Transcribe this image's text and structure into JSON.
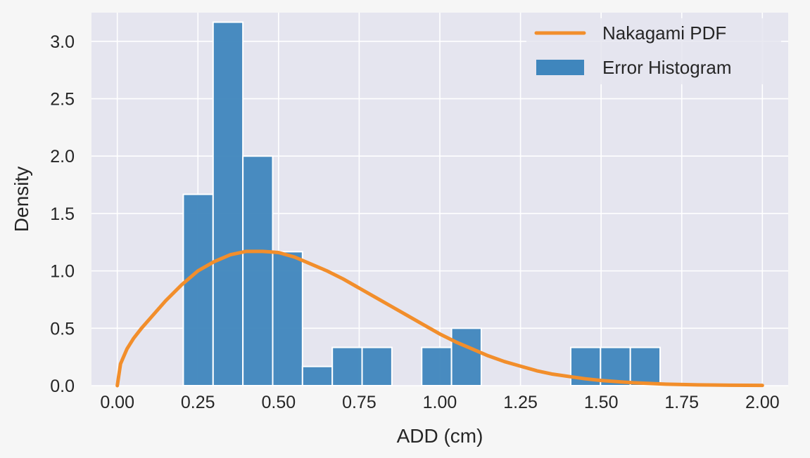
{
  "chart_data": {
    "type": "bar",
    "title": "",
    "xlabel": "ADD (cm)",
    "ylabel": "Density",
    "xlim": [
      -0.08,
      2.08
    ],
    "ylim": [
      0,
      3.25
    ],
    "grid": true,
    "x_ticks": [
      "0.00",
      "0.25",
      "0.50",
      "0.75",
      "1.00",
      "1.25",
      "1.50",
      "1.75",
      "2.00"
    ],
    "y_ticks": [
      "0.0",
      "0.5",
      "1.0",
      "1.5",
      "2.0",
      "2.5",
      "3.0"
    ],
    "legend_position": "top-right",
    "series": [
      {
        "name": "Error Histogram",
        "kind": "histogram",
        "color": "#3f86bd",
        "bin_width": 0.0924,
        "bins": [
          {
            "x0": 0.2046,
            "x1": 0.297,
            "density": 1.667
          },
          {
            "x0": 0.297,
            "x1": 0.3894,
            "density": 3.167
          },
          {
            "x0": 0.3894,
            "x1": 0.4818,
            "density": 2.0
          },
          {
            "x0": 0.4818,
            "x1": 0.5742,
            "density": 1.167
          },
          {
            "x0": 0.5742,
            "x1": 0.6666,
            "density": 0.167
          },
          {
            "x0": 0.6666,
            "x1": 0.759,
            "density": 0.333
          },
          {
            "x0": 0.759,
            "x1": 0.8514,
            "density": 0.333
          },
          {
            "x0": 0.8514,
            "x1": 0.9438,
            "density": 0.0
          },
          {
            "x0": 0.9438,
            "x1": 1.0362,
            "density": 0.333
          },
          {
            "x0": 1.0362,
            "x1": 1.1286,
            "density": 0.5
          },
          {
            "x0": 1.1286,
            "x1": 1.221,
            "density": 0.0
          },
          {
            "x0": 1.221,
            "x1": 1.3134,
            "density": 0.0
          },
          {
            "x0": 1.3134,
            "x1": 1.4058,
            "density": 0.0
          },
          {
            "x0": 1.4058,
            "x1": 1.4982,
            "density": 0.333
          },
          {
            "x0": 1.4982,
            "x1": 1.5906,
            "density": 0.333
          },
          {
            "x0": 1.5906,
            "x1": 1.683,
            "density": 0.333
          }
        ]
      },
      {
        "name": "Nakagami PDF",
        "kind": "line",
        "color": "#f28e2b",
        "points": [
          [
            0.0,
            0.0
          ],
          [
            0.01,
            0.19
          ],
          [
            0.03,
            0.32
          ],
          [
            0.05,
            0.41
          ],
          [
            0.075,
            0.5
          ],
          [
            0.1,
            0.58
          ],
          [
            0.15,
            0.74
          ],
          [
            0.2,
            0.88
          ],
          [
            0.25,
            1.0
          ],
          [
            0.3,
            1.08
          ],
          [
            0.35,
            1.14
          ],
          [
            0.4,
            1.17
          ],
          [
            0.45,
            1.17
          ],
          [
            0.5,
            1.16
          ],
          [
            0.55,
            1.12
          ],
          [
            0.6,
            1.06
          ],
          [
            0.65,
            1.0
          ],
          [
            0.7,
            0.93
          ],
          [
            0.75,
            0.85
          ],
          [
            0.8,
            0.77
          ],
          [
            0.85,
            0.69
          ],
          [
            0.9,
            0.61
          ],
          [
            0.95,
            0.53
          ],
          [
            1.0,
            0.45
          ],
          [
            1.05,
            0.38
          ],
          [
            1.1,
            0.32
          ],
          [
            1.15,
            0.26
          ],
          [
            1.2,
            0.21
          ],
          [
            1.25,
            0.17
          ],
          [
            1.3,
            0.13
          ],
          [
            1.35,
            0.1
          ],
          [
            1.4,
            0.08
          ],
          [
            1.45,
            0.06
          ],
          [
            1.5,
            0.045
          ],
          [
            1.6,
            0.025
          ],
          [
            1.7,
            0.013
          ],
          [
            1.8,
            0.007
          ],
          [
            1.9,
            0.004
          ],
          [
            2.0,
            0.002
          ]
        ]
      }
    ],
    "legend": [
      "Nakagami PDF",
      "Error Histogram"
    ]
  }
}
